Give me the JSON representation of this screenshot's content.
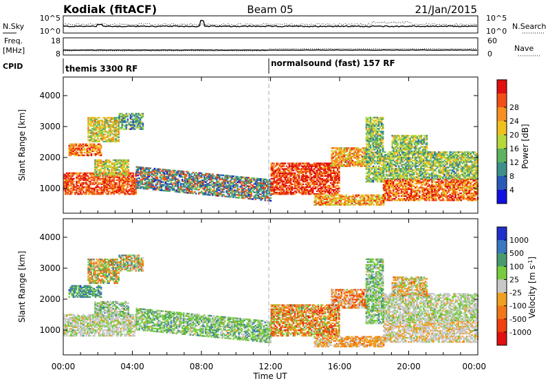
{
  "header": {
    "title_left": "Kodiak (fitACF)",
    "title_center": "Beam 05",
    "title_right": "21/Jan/2015"
  },
  "noise_panel": {
    "left_label": "N.Sky",
    "right_label": "N.Search",
    "left_top": "10^5",
    "left_bottom": "10^0",
    "right_top": "10^5",
    "right_bottom": "10^0"
  },
  "freq_panel": {
    "left_label_1": "Freq.",
    "left_label_2": "[MHz]",
    "right_label": "Nave",
    "left_top": "18",
    "left_bottom": "8",
    "right_top": "60",
    "right_bottom": "0"
  },
  "cpid_panel": {
    "label": "CPID",
    "seg1": "themis 3300 RF",
    "seg2": "normalsound (fast) 157 RF"
  },
  "chart_data": [
    {
      "type": "heatmap",
      "name": "power",
      "ylabel": "Slant Range [km]",
      "ylim": [
        200,
        4600
      ],
      "yticks": [
        "1000",
        "2000",
        "3000",
        "4000"
      ],
      "colorbar_label": "Power [dB]",
      "colorbar_ticks": [
        "4",
        "8",
        "12",
        "16",
        "20",
        "24",
        "28"
      ],
      "colors": [
        "#1010e0",
        "#2a5ab8",
        "#3f8f8a",
        "#5fb35f",
        "#b6d83c",
        "#f0c020",
        "#f79020",
        "#f05018",
        "#e01010"
      ]
    },
    {
      "type": "heatmap",
      "name": "velocity",
      "ylabel": "Slant Range [km]",
      "ylim": [
        200,
        4600
      ],
      "yticks": [
        "1000",
        "2000",
        "3000",
        "4000"
      ],
      "colorbar_label": "Velocity [m s",
      "colorbar_label_sup": "-1",
      "colorbar_label_end": "]",
      "colorbar_ticks": [
        "1000",
        "500",
        "100",
        "25",
        "-25",
        "-100",
        "-500",
        "-1000"
      ],
      "colors": [
        "#2030c8",
        "#3a78c0",
        "#4a9a70",
        "#78cc40",
        "#c8c8c8",
        "#f0a020",
        "#f07818",
        "#f04010",
        "#e01010"
      ]
    }
  ],
  "xaxis": {
    "ticks": [
      "00:00",
      "04:00",
      "08:00",
      "12:00",
      "16:00",
      "20:00",
      "00:00"
    ],
    "label": "Time UT"
  }
}
